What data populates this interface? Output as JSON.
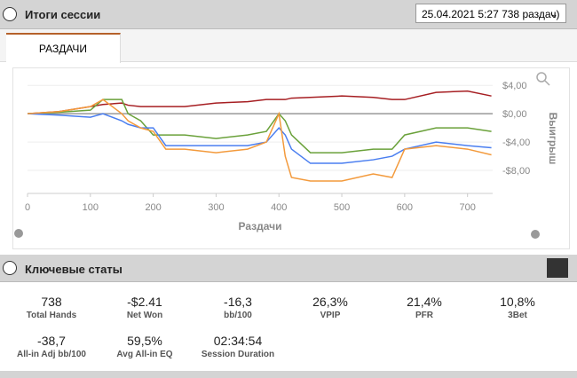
{
  "header": {
    "title": "Итоги сессии",
    "session": "25.04.2021 5:27 738 раздач)"
  },
  "tab": {
    "label": "РАЗДАЧИ"
  },
  "chart_data": {
    "type": "line",
    "x_label": "Раздачи",
    "y_label": "Выигрыш",
    "x": [
      0,
      50,
      100,
      120,
      150,
      160,
      180,
      200,
      220,
      250,
      300,
      350,
      380,
      400,
      410,
      420,
      450,
      500,
      550,
      580,
      600,
      650,
      700,
      738
    ],
    "series": [
      {
        "color": "#a61e22",
        "values": [
          0,
          0.3,
          1,
          1.3,
          1.5,
          1.2,
          1,
          1,
          1,
          1,
          1.5,
          1.7,
          2,
          2,
          2,
          2.2,
          2.3,
          2.5,
          2.3,
          2,
          2,
          3,
          3.2,
          2.5
        ]
      },
      {
        "color": "#6aa13a",
        "values": [
          0,
          0.2,
          0.5,
          2,
          2,
          0,
          -1,
          -3,
          -3,
          -3,
          -3.5,
          -3,
          -2.5,
          0,
          -1,
          -3,
          -5.5,
          -5.5,
          -5,
          -5,
          -3,
          -2,
          -2,
          -2.5
        ]
      },
      {
        "color": "#4a7ef0",
        "values": [
          0,
          -0.2,
          -0.5,
          0,
          -1,
          -1.5,
          -2,
          -2,
          -4.5,
          -4.5,
          -4.5,
          -4.5,
          -4,
          -2,
          -3,
          -5,
          -7,
          -7,
          -6.5,
          -6,
          -5,
          -4,
          -4.5,
          -4.8
        ]
      },
      {
        "color": "#f39a3c",
        "values": [
          0,
          0.3,
          1,
          2,
          0,
          -1,
          -2,
          -2.5,
          -5,
          -5,
          -5.5,
          -5,
          -4,
          0,
          -6,
          -9,
          -9.5,
          -9.5,
          -8.5,
          -9,
          -5,
          -4.5,
          -5,
          -5.8
        ]
      }
    ],
    "xlim": [
      0,
      740
    ],
    "ylim": [
      -11.25,
      4.4
    ],
    "xticks": [
      0,
      100,
      200,
      300,
      400,
      500,
      600,
      700
    ],
    "yticks": [
      {
        "value": 4,
        "label": "$4,00"
      },
      {
        "value": 0,
        "label": "$0,00"
      },
      {
        "value": -4,
        "label": "-$4,00"
      },
      {
        "value": -8,
        "label": "-$8,00"
      }
    ],
    "grid": true
  },
  "stats": {
    "title": "Ключевые статы",
    "items": [
      {
        "value": "738",
        "label": "Total Hands"
      },
      {
        "value": "-$2.41",
        "label": "Net Won"
      },
      {
        "value": "-16,3",
        "label": "bb/100"
      },
      {
        "value": "26,3%",
        "label": "VPIP"
      },
      {
        "value": "21,4%",
        "label": "PFR"
      },
      {
        "value": "10,8%",
        "label": "3Bet"
      },
      {
        "value": "-38,7",
        "label": "All-in Adj bb/100"
      },
      {
        "value": "59,5%",
        "label": "Avg All-in EQ"
      },
      {
        "value": "02:34:54",
        "label": "Session Duration"
      }
    ]
  }
}
